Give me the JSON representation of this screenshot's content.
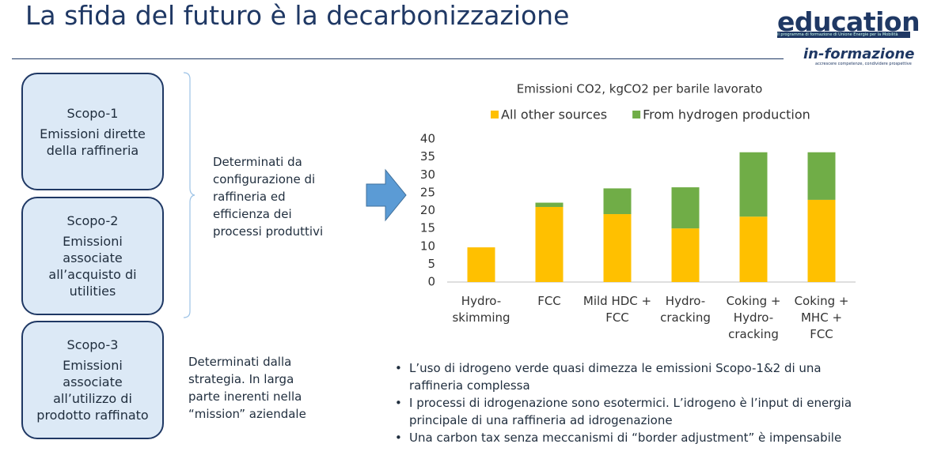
{
  "header": {
    "title": "La sfida del futuro è la decarbonizzazione",
    "logo_brand": "education",
    "logo_tagline": "il programma di formazione di Unione Energie per la Mobilità",
    "logo_secondary": "in-formazione",
    "logo_secondary_tagline": "accrescere competenze, condividere prospettive"
  },
  "scopes": [
    {
      "title": "Scopo-1",
      "lines": [
        "Emissioni dirette",
        "della raffineria"
      ]
    },
    {
      "title": "Scopo-2",
      "lines": [
        "Emissioni",
        "associate",
        "all’acquisto di",
        "utilities"
      ]
    },
    {
      "title": "Scopo-3",
      "lines": [
        "Emissioni",
        "associate",
        "all’utilizzo di",
        "prodotto raffinato"
      ]
    }
  ],
  "notes": [
    [
      "Determinati da",
      "configurazione di",
      "raffineria ed",
      "efficienza dei",
      "processi produttivi"
    ],
    [
      "Determinati dalla",
      "strategia. In larga",
      "parte inerenti nella",
      "“mission” aziendale"
    ]
  ],
  "bullets": [
    [
      "L’uso di idrogeno verde quasi dimezza le emissioni Scopo-1&2 di una",
      "raffineria complessa"
    ],
    [
      "I processi di idrogenazione sono esotermici. L’idrogeno è l’input di energia",
      "principale di una raffineria ad idrogenazione"
    ],
    [
      "Una carbon tax senza meccanismi di “border adjustment” è impensabile"
    ]
  ],
  "chart_data": {
    "type": "stacked-bar",
    "title": "Emissioni CO2, kgCO2 per barile lavorato",
    "categories": [
      "Hydro-\nskimming",
      "FCC",
      "Mild HDC +\nFCC",
      "Hydro-\ncracking",
      "Coking +\nHydro-\ncracking",
      "Coking +\nMHC +\nFCC"
    ],
    "series": [
      {
        "name": "All other sources",
        "color": "#ffc000",
        "values": [
          9.7,
          21,
          19,
          15,
          18.3,
          23
        ]
      },
      {
        "name": "From hydrogen production",
        "color": "#70ad47",
        "values": [
          0,
          1.2,
          7.2,
          11.5,
          18,
          13.3
        ]
      }
    ],
    "ylim": [
      0,
      40
    ],
    "yticks": [
      0,
      5,
      10,
      15,
      20,
      25,
      30,
      35,
      40
    ],
    "grid": false,
    "legend": "top"
  }
}
